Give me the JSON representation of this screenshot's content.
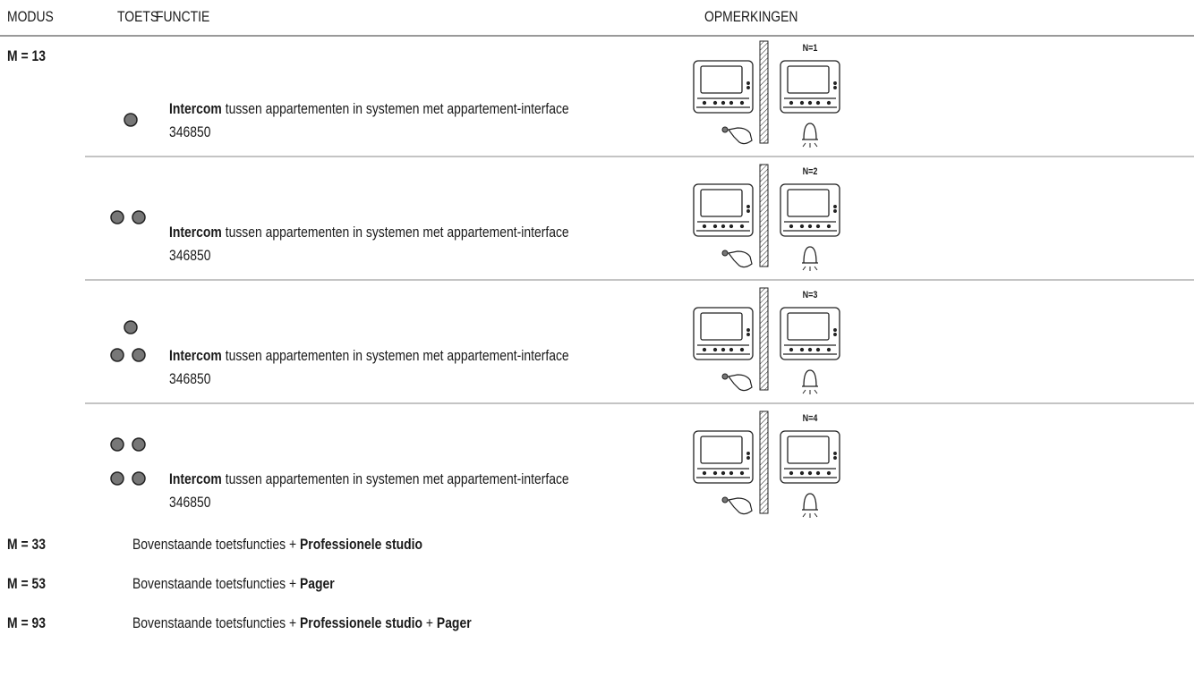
{
  "header": {
    "columns": [
      "MODUS",
      "TOETS",
      "FUNCTIE",
      "OPMERKINGEN"
    ]
  },
  "mode": "M = 13",
  "rows": [
    {
      "function_bold": "Intercom",
      "function_text": "tussen appartementen in systemen met appartement-interface",
      "code": "346850",
      "note_label": "N=1"
    },
    {
      "function_bold": "Intercom",
      "function_text": "tussen appartementen in systemen met appartement-interface",
      "code": "346850",
      "note_label": "N=2"
    },
    {
      "function_bold": "Intercom",
      "function_text": "tussen appartementen in systemen met appartement-interface",
      "code": "346850",
      "note_label": "N=3"
    },
    {
      "function_bold": "Intercom",
      "function_text": "tussen appartementen in systemen met appartement-interface",
      "code": "346850",
      "note_label": "N=4"
    }
  ],
  "extras": [
    {
      "mode": "M = 33",
      "segments": [
        {
          "text": "Bovenstaande toetsfuncties",
          "bold": false
        },
        {
          "text": "+",
          "bold": false
        },
        {
          "text": "Professionele studio",
          "bold": true
        }
      ]
    },
    {
      "mode": "M = 53",
      "segments": [
        {
          "text": "Bovenstaande toetsfuncties",
          "bold": false
        },
        {
          "text": "+",
          "bold": false
        },
        {
          "text": "Pager",
          "bold": true
        }
      ]
    },
    {
      "mode": "M = 93",
      "segments": [
        {
          "text": "Bovenstaande toetsfuncties",
          "bold": false
        },
        {
          "text": "+",
          "bold": false
        },
        {
          "text": "Professionele studio",
          "bold": true
        },
        {
          "text": "+",
          "bold": false
        },
        {
          "text": "Pager",
          "bold": true
        }
      ]
    }
  ]
}
